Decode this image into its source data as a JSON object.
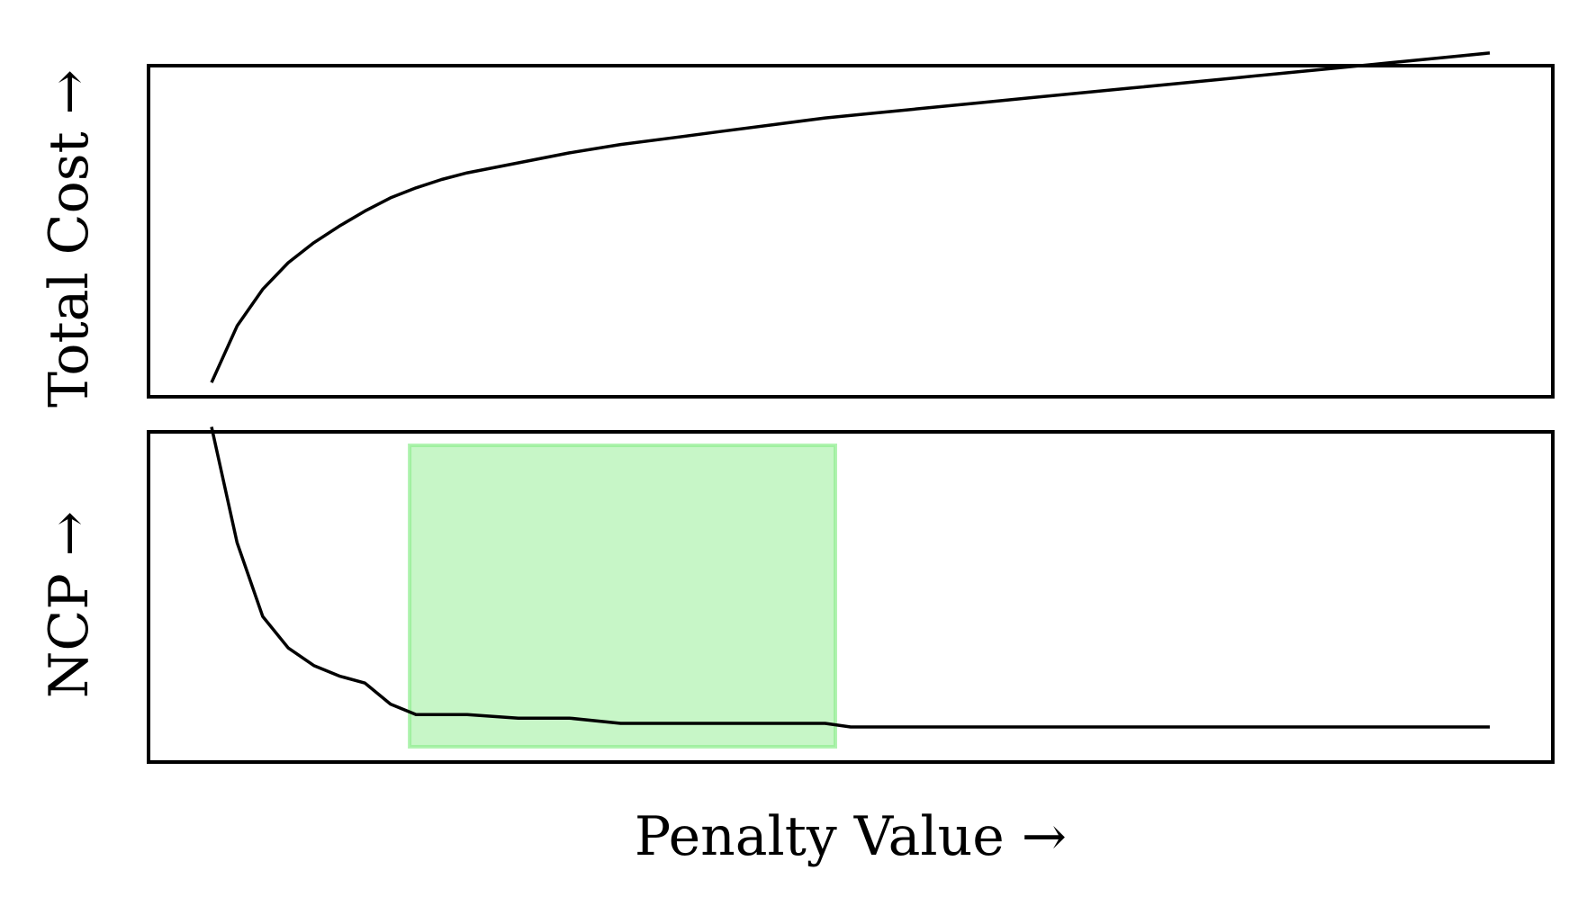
{
  "chart_data": [
    {
      "type": "line",
      "ylabel": "Total Cost →",
      "xlim": [
        0,
        100
      ],
      "ylim": [
        0,
        100
      ],
      "grid": false,
      "series": [
        {
          "x": [
            0,
            2,
            4,
            6,
            8,
            10,
            12,
            14,
            16,
            18,
            20,
            24,
            28,
            32,
            36,
            40,
            44,
            48,
            52,
            56,
            60,
            64,
            68,
            72,
            76,
            80,
            84,
            88,
            92,
            96,
            100
          ],
          "values": [
            4,
            21,
            32,
            40,
            46,
            51,
            55.5,
            59.5,
            62.5,
            65,
            67,
            70,
            73,
            75.5,
            77.5,
            79.5,
            81.5,
            83.5,
            85,
            86.5,
            88,
            89.5,
            91,
            92.5,
            94,
            95.5,
            97,
            98.5,
            100,
            101.5,
            103
          ]
        }
      ]
    },
    {
      "type": "line",
      "ylabel": "NCP →",
      "xlabel": "Penalty Value →",
      "xlim": [
        0,
        100
      ],
      "ylim": [
        0,
        100
      ],
      "grid": false,
      "highlight": {
        "x_start": 15.5,
        "x_end": 48.8,
        "color": "#90ee90"
      },
      "series": [
        {
          "x": [
            0,
            2,
            4,
            6,
            8,
            10,
            12,
            14,
            16,
            18,
            20,
            24,
            28,
            32,
            36,
            40,
            44,
            48,
            50,
            55,
            60,
            65,
            70,
            75,
            80,
            85,
            90,
            95,
            100
          ],
          "values": [
            95,
            62,
            41,
            32,
            27,
            24,
            22,
            16,
            13,
            13,
            13,
            12,
            12,
            10.5,
            10.5,
            10.5,
            10.5,
            10.5,
            9.5,
            9.5,
            9.5,
            9.5,
            9.5,
            9.5,
            9.5,
            9.5,
            9.5,
            9.5,
            9.5
          ]
        }
      ]
    }
  ]
}
